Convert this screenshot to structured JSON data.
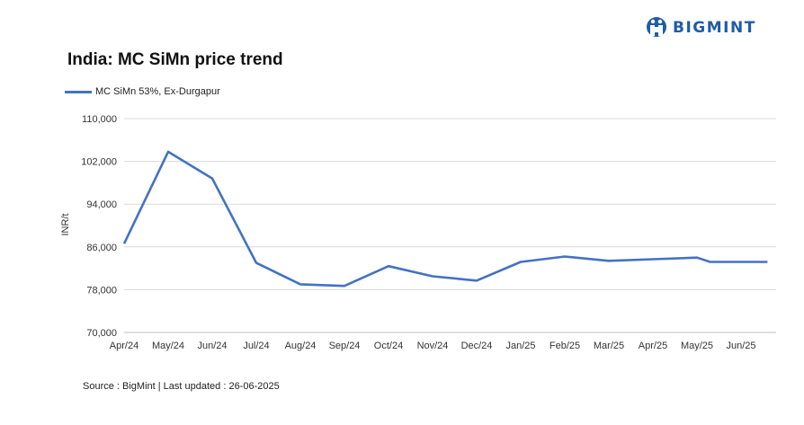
{
  "brand": {
    "name": "BIGMINT",
    "color": "#1f5ca8"
  },
  "chart_data": {
    "type": "line",
    "title": "India: MC SiMn price trend",
    "ylabel": "INR/t",
    "xlabel": "",
    "ylim": [
      70000,
      110000
    ],
    "yticks": [
      70000,
      78000,
      86000,
      94000,
      102000,
      110000
    ],
    "ytick_labels": [
      "70,000",
      "78,000",
      "86,000",
      "94,000",
      "102,000",
      "110,000"
    ],
    "grid": true,
    "legend_position": "top-left",
    "x_tick_labels": [
      "Apr/24",
      "May/24",
      "Jun/24",
      "Jul/24",
      "Aug/24",
      "Sep/24",
      "Oct/24",
      "Nov/24",
      "Dec/24",
      "Jan/25",
      "Feb/25",
      "Mar/25",
      "Apr/25",
      "May/25",
      "Jun/25"
    ],
    "series": [
      {
        "name": "MC SiMn 53%, Ex-Durgapur",
        "color": "#4472c4",
        "points": [
          {
            "x": "Apr/24",
            "y": 86600
          },
          {
            "x": "May/24",
            "y": 103800
          },
          {
            "x": "Jun/24",
            "y": 98800
          },
          {
            "x": "Jul/24",
            "y": 83000
          },
          {
            "x": "Aug/24",
            "y": 79000
          },
          {
            "x": "Sep/24",
            "y": 78700
          },
          {
            "x": "Oct/24",
            "y": 82400
          },
          {
            "x": "Nov/24",
            "y": 80500
          },
          {
            "x": "Dec/24",
            "y": 79700
          },
          {
            "x": "Jan/25",
            "y": 83200
          },
          {
            "x": "Feb/25",
            "y": 84200
          },
          {
            "x": "Mar/25",
            "y": 83400
          },
          {
            "x": "Apr/25",
            "y": 83700
          },
          {
            "x": "May/25",
            "y": 84000
          },
          {
            "x": "May/25+",
            "y": 83200
          },
          {
            "x": "Jun/25",
            "y": 83200
          },
          {
            "x": "Jun/25 end",
            "y": 83200
          }
        ]
      }
    ]
  },
  "source": "Source : BigMint | Last updated : 26-06-2025"
}
